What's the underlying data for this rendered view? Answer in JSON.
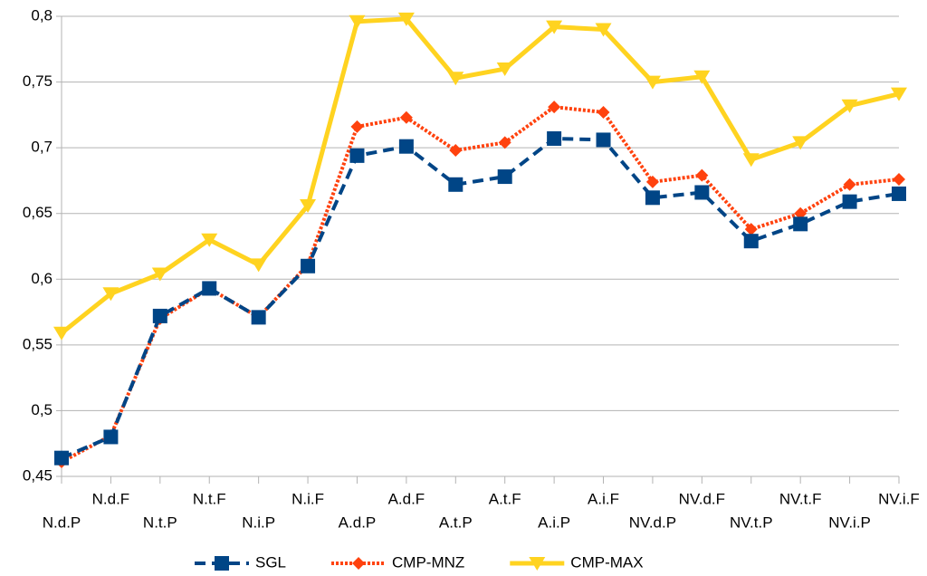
{
  "chart_data": {
    "type": "line",
    "categories": [
      "N.d.P",
      "N.d.F",
      "N.t.P",
      "N.t.F",
      "N.i.P",
      "N.i.F",
      "A.d.P",
      "A.d.F",
      "A.t.P",
      "A.t.F",
      "A.i.P",
      "A.i.F",
      "NV.d.P",
      "NV.d.F",
      "NV.t.P",
      "NV.t.F",
      "NV.i.P",
      "NV.i.F"
    ],
    "series": [
      {
        "name": "SGL",
        "color": "#004586",
        "dash": "dashed",
        "marker": "square",
        "values": [
          0.464,
          0.48,
          0.572,
          0.593,
          0.571,
          0.61,
          0.694,
          0.701,
          0.672,
          0.678,
          0.707,
          0.706,
          0.662,
          0.666,
          0.629,
          0.642,
          0.659,
          0.665
        ]
      },
      {
        "name": "CMP-MNZ",
        "color": "#ff420e",
        "dash": "dotted",
        "marker": "diamond",
        "values": [
          0.461,
          0.481,
          0.57,
          0.593,
          0.571,
          0.611,
          0.716,
          0.723,
          0.698,
          0.704,
          0.731,
          0.727,
          0.674,
          0.679,
          0.638,
          0.65,
          0.672,
          0.676
        ]
      },
      {
        "name": "CMP-MAX",
        "color": "#ffd320",
        "dash": "solid",
        "marker": "triangle-down",
        "values": [
          0.559,
          0.589,
          0.604,
          0.63,
          0.611,
          0.656,
          0.796,
          0.798,
          0.753,
          0.76,
          0.792,
          0.79,
          0.75,
          0.754,
          0.691,
          0.704,
          0.732,
          0.741
        ]
      }
    ],
    "ylim": [
      0.45,
      0.8
    ],
    "yticks": [
      {
        "value": 0.45,
        "label": "0,45"
      },
      {
        "value": 0.5,
        "label": "0,5"
      },
      {
        "value": 0.55,
        "label": "0,55"
      },
      {
        "value": 0.6,
        "label": "0,6"
      },
      {
        "value": 0.65,
        "label": "0,65"
      },
      {
        "value": 0.7,
        "label": "0,7"
      },
      {
        "value": 0.75,
        "label": "0,75"
      },
      {
        "value": 0.8,
        "label": "0,8"
      }
    ],
    "grid": true,
    "legend": "bottom"
  }
}
